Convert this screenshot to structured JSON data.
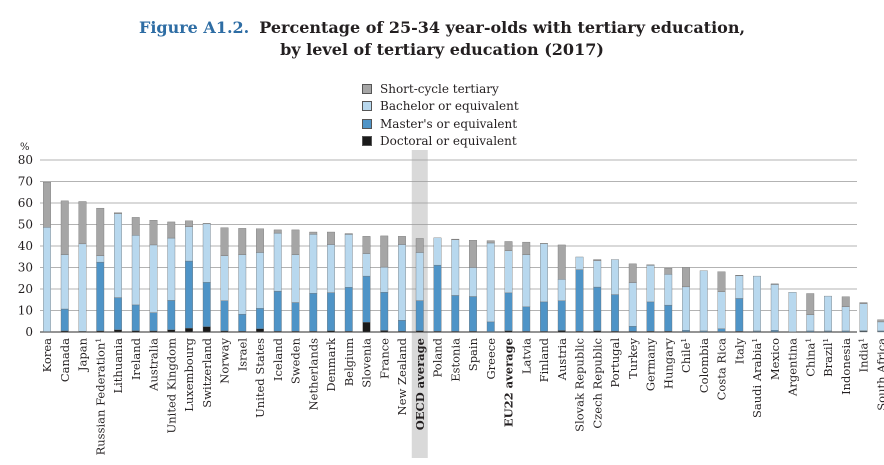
{
  "figure_label": "Figure A1.2.",
  "title_line1": "Percentage of 25-34 year-olds with tertiary education,",
  "title_line2": "by level of tertiary education (2017)",
  "colors": {
    "short_cycle": "#a6a6a6",
    "bachelor": "#b8d8ee",
    "master": "#4f94c7",
    "doctoral": "#1a1a1a",
    "highlight": "#d9d9d9",
    "grid": "#9a9a9a"
  },
  "chart_data": {
    "type": "bar",
    "stacked": true,
    "ylabel": "%",
    "ylim": [
      0,
      80
    ],
    "yticks": [
      0,
      10,
      20,
      30,
      40,
      50,
      60,
      70,
      80
    ],
    "grid": true,
    "legend_position": "top-center",
    "categories": [
      "Korea",
      "Canada",
      "Japan",
      "Russian Federation¹",
      "Lithuania",
      "Ireland",
      "Australia",
      "United Kingdom",
      "Luxembourg",
      "Switzerland",
      "Norway",
      "Israel",
      "United States",
      "Iceland",
      "Sweden",
      "Netherlands",
      "Denmark",
      "Belgium",
      "Slovenia",
      "France",
      "New Zealand",
      "OECD average",
      "Poland",
      "Estonia",
      "Spain",
      "Greece",
      "EU22 average",
      "Latvia",
      "Finland",
      "Austria",
      "Slovak Republic",
      "Czech Republic",
      "Portugal",
      "Turkey",
      "Germany",
      "Hungary",
      "Chile¹",
      "Colombia",
      "Costa Rica",
      "Italy",
      "Saudi Arabia¹",
      "Mexico",
      "Argentina",
      "China¹",
      "Brazil¹",
      "Indonesia",
      "India¹",
      "South Africa"
    ],
    "bold_categories": [
      "OECD average",
      "EU22 average"
    ],
    "highlight_category": "OECD average",
    "series": [
      {
        "name": "Doctoral or equivalent",
        "values": [
          0.2,
          0.5,
          0.3,
          0.5,
          1,
          0.6,
          0.5,
          1,
          1.8,
          2.5,
          0.5,
          0.4,
          1.5,
          0.4,
          0.4,
          0.4,
          0.6,
          0.4,
          4.5,
          0.7,
          0.4,
          0.6,
          0.4,
          0.3,
          0.4,
          0.2,
          0.6,
          0.3,
          0.3,
          0.7,
          0.4,
          0.6,
          0.4,
          0.3,
          0.4,
          0.4,
          0.2,
          0.1,
          0.2,
          0.3,
          0.2,
          0.2,
          0.1,
          0.1,
          0.2,
          0.1,
          0.3,
          0.2
        ]
      },
      {
        "name": "Master's or equivalent",
        "values": [
          0,
          10.2,
          0,
          32,
          15,
          12,
          8.5,
          13.7,
          31.2,
          20.6,
          14,
          7.9,
          9.5,
          18.6,
          13.3,
          17.6,
          17.7,
          20.4,
          21.5,
          17.8,
          5.1,
          14,
          30.7,
          16.7,
          16.1,
          4.5,
          17.6,
          11.4,
          13.7,
          13.8,
          28.6,
          20.3,
          17,
          2.4,
          13.6,
          12.1,
          0.6,
          0.4,
          1.3,
          15.3,
          0.3,
          0.6,
          0,
          0.4,
          0.3,
          0.4,
          0.3,
          0.3
        ]
      },
      {
        "name": "Bachelor or equivalent",
        "values": [
          48.5,
          25.3,
          40.7,
          3,
          39,
          32.4,
          31.5,
          29,
          16,
          27.2,
          21,
          27.7,
          26,
          27,
          22.3,
          27.5,
          22.4,
          24.6,
          10.5,
          11.7,
          35.2,
          22.4,
          12.7,
          25.9,
          13.5,
          36.7,
          19.6,
          24.3,
          27.1,
          10,
          5.9,
          12.3,
          16.3,
          20.3,
          17,
          14.4,
          20.2,
          28,
          17.2,
          10.6,
          25.5,
          21.3,
          18.4,
          7.5,
          16.2,
          11.3,
          12.6,
          4.2
        ]
      },
      {
        "name": "Short-cycle tertiary",
        "values": [
          21,
          25,
          19.7,
          22.1,
          0.5,
          8.3,
          11.5,
          7.5,
          2.7,
          0.2,
          13,
          12.2,
          11,
          1.5,
          11.5,
          1,
          5.8,
          0.4,
          8,
          14.5,
          3.8,
          6.5,
          0,
          0.3,
          12.7,
          1.1,
          4.3,
          5.8,
          0.1,
          16,
          0,
          0.5,
          0,
          8.7,
          0.3,
          2.8,
          9,
          0,
          9.3,
          0.2,
          0,
          0.3,
          0,
          9.9,
          0,
          4.6,
          0.5,
          1
        ]
      }
    ],
    "legend_order": [
      "Short-cycle tertiary",
      "Bachelor or equivalent",
      "Master's or equivalent",
      "Doctoral or equivalent"
    ]
  }
}
